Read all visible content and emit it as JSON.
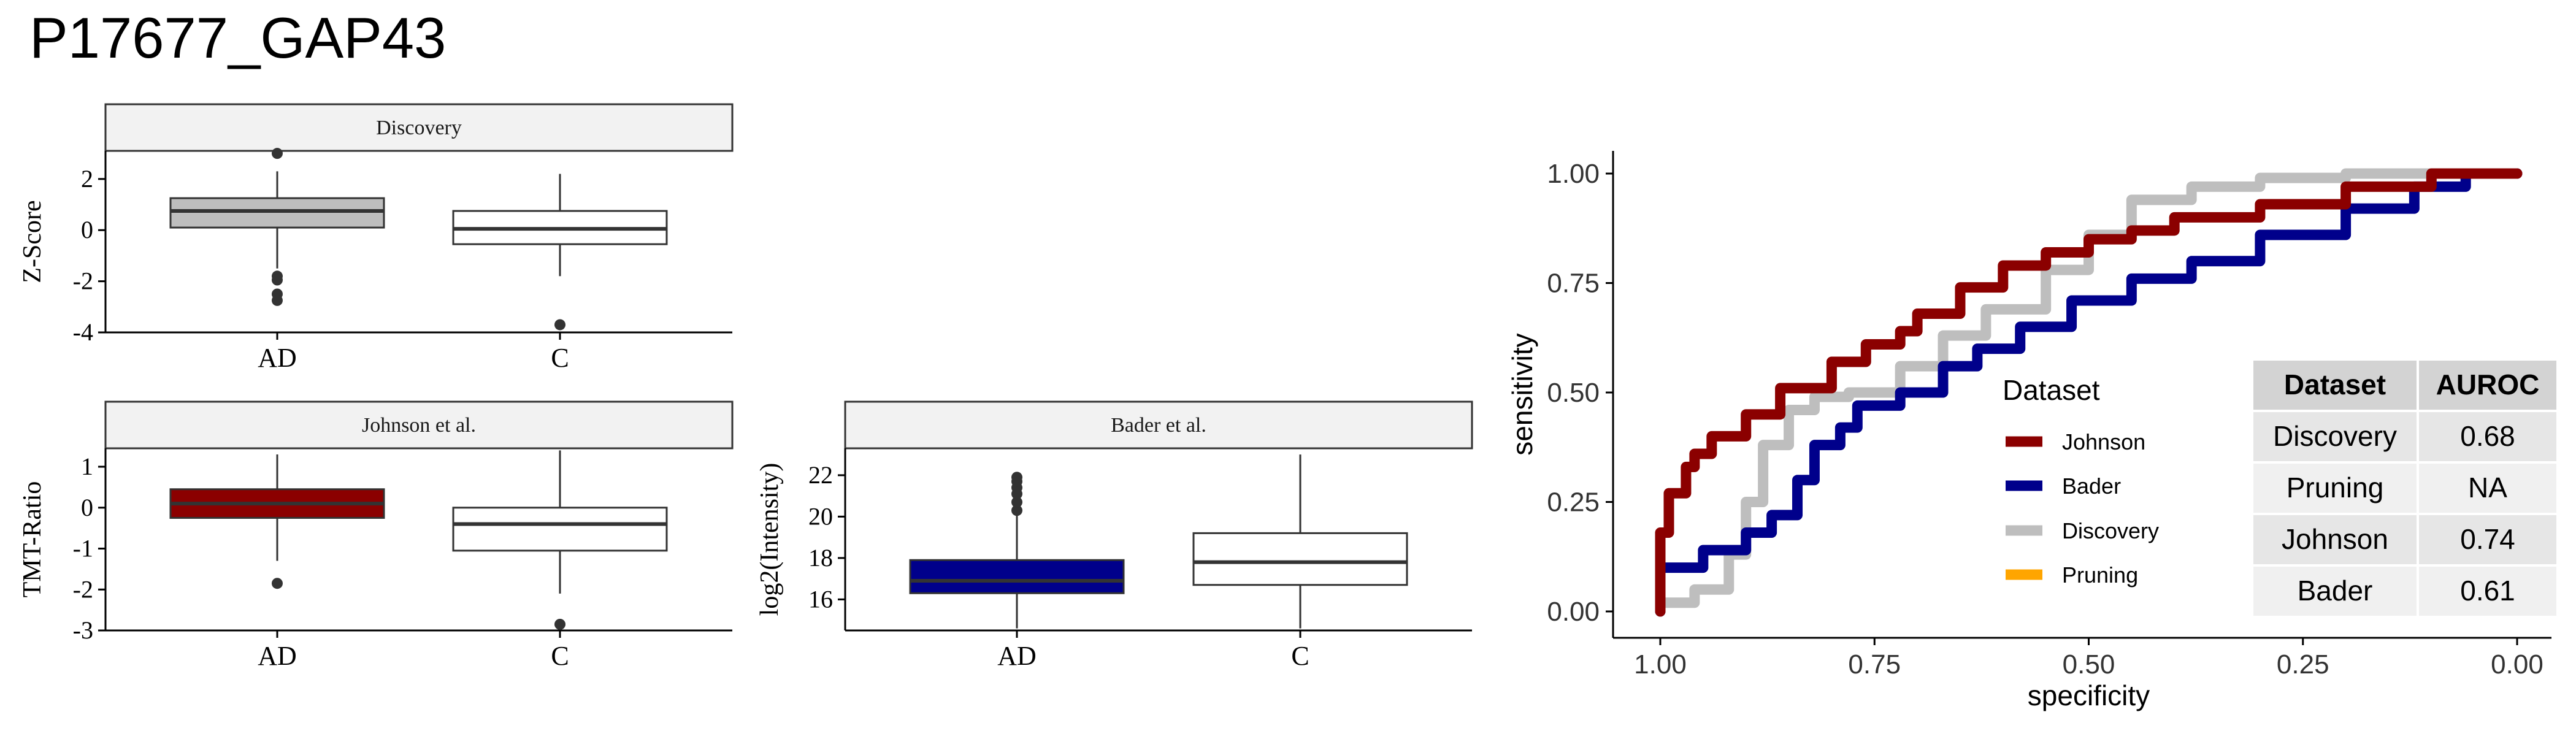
{
  "title": "P17677_GAP43",
  "chart_data": [
    {
      "type": "box",
      "panel": "Discovery",
      "ylabel": "Z-Score",
      "categories": [
        "AD",
        "C"
      ],
      "yticks": [
        2,
        0,
        -2,
        -4
      ],
      "ylim": [
        -4,
        3.1
      ],
      "colors": {
        "AD": "#bebebe",
        "C": "#ffffff"
      },
      "boxes": [
        {
          "category": "AD",
          "min": -1.5,
          "q1": 0.1,
          "median": 0.75,
          "q3": 1.25,
          "max": 2.3,
          "outliers": [
            3.0,
            -1.8,
            -1.95,
            -2.5,
            -2.75
          ]
        },
        {
          "category": "C",
          "min": -1.8,
          "q1": -0.55,
          "median": 0.05,
          "q3": 0.75,
          "max": 2.2,
          "outliers": [
            -3.7
          ]
        }
      ]
    },
    {
      "type": "box",
      "panel": "Johnson et al.",
      "ylabel": "TMT-Ratio",
      "categories": [
        "AD",
        "C"
      ],
      "yticks": [
        1,
        0,
        -1,
        -2,
        -3
      ],
      "ylim": [
        -3,
        1.45
      ],
      "colors": {
        "AD": "#8b0000",
        "C": "#ffffff"
      },
      "boxes": [
        {
          "category": "AD",
          "min": -1.3,
          "q1": -0.25,
          "median": 0.1,
          "q3": 0.45,
          "max": 1.3,
          "outliers": [
            -1.85
          ]
        },
        {
          "category": "C",
          "min": -2.1,
          "q1": -1.05,
          "median": -0.4,
          "q3": 0.0,
          "max": 1.4,
          "outliers": [
            -2.85
          ]
        }
      ]
    },
    {
      "type": "box",
      "panel": "Bader et al.",
      "ylabel": "log2(Intensity)",
      "categories": [
        "AD",
        "C"
      ],
      "yticks": [
        22,
        20,
        18,
        16
      ],
      "ylim": [
        14.5,
        23.3
      ],
      "colors": {
        "AD": "#00008b",
        "C": "#ffffff"
      },
      "boxes": [
        {
          "category": "AD",
          "min": 14.6,
          "q1": 16.3,
          "median": 16.9,
          "q3": 17.9,
          "max": 20.2,
          "outliers": [
            20.3,
            20.7,
            21.1,
            21.4,
            21.7,
            21.9
          ]
        },
        {
          "category": "C",
          "min": 14.6,
          "q1": 16.7,
          "median": 17.8,
          "q3": 19.2,
          "max": 23.0,
          "outliers": []
        }
      ]
    },
    {
      "type": "line",
      "subtype": "roc",
      "xlabel": "specificity",
      "ylabel": "sensitivity",
      "xlim": [
        1.0,
        0.0
      ],
      "ylim": [
        0.0,
        1.0
      ],
      "xticks": [
        "1.00",
        "0.75",
        "0.50",
        "0.25",
        "0.00"
      ],
      "yticks": [
        "1.00",
        "0.75",
        "0.50",
        "0.25",
        "0.00"
      ],
      "legend": {
        "title": "Dataset",
        "placement": "inside-right"
      },
      "series": [
        {
          "name": "Johnson",
          "color": "#8b0000",
          "x": [
            1.0,
            1.0,
            0.99,
            0.97,
            0.96,
            0.94,
            0.9,
            0.86,
            0.8,
            0.76,
            0.72,
            0.7,
            0.65,
            0.6,
            0.55,
            0.5,
            0.45,
            0.4,
            0.3,
            0.2,
            0.1,
            0.0
          ],
          "y": [
            0.0,
            0.08,
            0.18,
            0.27,
            0.33,
            0.36,
            0.4,
            0.45,
            0.51,
            0.57,
            0.61,
            0.64,
            0.68,
            0.74,
            0.79,
            0.82,
            0.85,
            0.87,
            0.9,
            0.93,
            0.97,
            1.0
          ]
        },
        {
          "name": "Bader",
          "color": "#00008b",
          "x": [
            1.0,
            1.0,
            0.95,
            0.9,
            0.87,
            0.84,
            0.82,
            0.79,
            0.77,
            0.72,
            0.67,
            0.63,
            0.58,
            0.52,
            0.45,
            0.38,
            0.3,
            0.2,
            0.12,
            0.06,
            0.0
          ],
          "y": [
            0.0,
            0.06,
            0.1,
            0.14,
            0.18,
            0.22,
            0.3,
            0.38,
            0.42,
            0.47,
            0.5,
            0.56,
            0.6,
            0.65,
            0.71,
            0.76,
            0.8,
            0.86,
            0.92,
            0.97,
            1.0
          ]
        },
        {
          "name": "Discovery",
          "color": "#bebebe",
          "x": [
            1.0,
            0.96,
            0.92,
            0.9,
            0.88,
            0.85,
            0.82,
            0.78,
            0.72,
            0.67,
            0.62,
            0.55,
            0.5,
            0.45,
            0.38,
            0.3,
            0.2,
            0.1,
            0.0
          ],
          "y": [
            0.0,
            0.02,
            0.05,
            0.13,
            0.25,
            0.38,
            0.46,
            0.49,
            0.5,
            0.56,
            0.63,
            0.69,
            0.78,
            0.86,
            0.94,
            0.97,
            0.99,
            1.0,
            1.0
          ]
        },
        {
          "name": "Pruning",
          "color": "#ffa500",
          "x": [],
          "y": []
        }
      ],
      "table": {
        "columns": [
          "Dataset",
          "AUROC"
        ],
        "rows": [
          [
            "Discovery",
            "0.68"
          ],
          [
            "Pruning",
            "NA"
          ],
          [
            "Johnson",
            "0.74"
          ],
          [
            "Bader",
            "0.61"
          ]
        ]
      }
    }
  ]
}
